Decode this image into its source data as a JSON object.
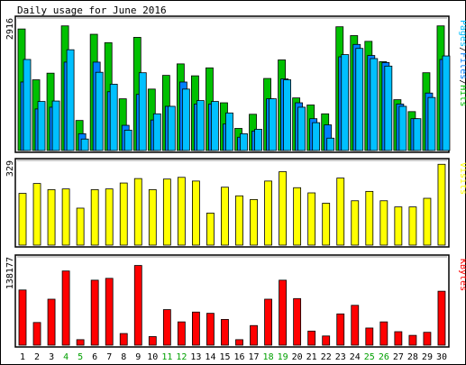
{
  "chart_data": {
    "type": "bar",
    "title": "Daily usage for June 2016",
    "categories": [
      "1",
      "2",
      "3",
      "4",
      "5",
      "6",
      "7",
      "8",
      "9",
      "10",
      "11",
      "12",
      "13",
      "14",
      "15",
      "16",
      "17",
      "18",
      "19",
      "20",
      "21",
      "22",
      "23",
      "24",
      "25",
      "26",
      "27",
      "28",
      "29",
      "30"
    ],
    "weekend_days": [
      "4",
      "5",
      "11",
      "12",
      "18",
      "19",
      "25",
      "26"
    ],
    "colors": {
      "hits": "#00c000",
      "files": "#0080ff",
      "pages": "#00c0ff",
      "visits": "#ffff00",
      "kbytes": "#ff0000",
      "weekday_label": "#000000",
      "weekend_label": "#00a000",
      "panel_bg": "#ffffff",
      "frame": "#000000"
    },
    "panels": [
      {
        "id": "hits-files-pages",
        "max_label": "2916",
        "ymax": 2916,
        "legend": [
          {
            "text": "Pages",
            "color": "#00c0ff"
          },
          {
            "text": "/",
            "color": "#000000"
          },
          {
            "text": "Files",
            "color": "#0080ff"
          },
          {
            "text": "/",
            "color": "#000000"
          },
          {
            "text": "Hits",
            "color": "#00c000"
          }
        ],
        "series": [
          {
            "name": "Hits",
            "color": "#00c000",
            "values": [
              2750,
              1600,
              1750,
              2820,
              680,
              2630,
              2440,
              1170,
              2560,
              1390,
              1700,
              1960,
              1690,
              1870,
              1080,
              500,
              820,
              1630,
              2050,
              1190,
              1030,
              830,
              2800,
              2600,
              2470,
              2010,
              1150,
              880,
              1760,
              2820
            ]
          },
          {
            "name": "Files",
            "color": "#0080ff",
            "values": [
              1550,
              940,
              980,
              2000,
              380,
              2000,
              1330,
              570,
              1270,
              690,
              1000,
              1550,
              1050,
              1050,
              600,
              300,
              440,
              1170,
              1620,
              1080,
              720,
              580,
              2120,
              2400,
              2150,
              1990,
              1050,
              720,
              1300,
              2060
            ]
          },
          {
            "name": "Pages",
            "color": "#00c0ff",
            "values": [
              2060,
              1110,
              1120,
              2280,
              260,
              1770,
              1500,
              460,
              1760,
              830,
              1000,
              1390,
              1130,
              1110,
              850,
              380,
              480,
              1170,
              1600,
              980,
              630,
              280,
              2170,
              2310,
              2080,
              1910,
              1000,
              720,
              1200,
              2140
            ]
          }
        ]
      },
      {
        "id": "visits",
        "max_label": "329",
        "ymax": 329,
        "legend": [
          {
            "text": "Visits",
            "color": "#ffff00"
          }
        ],
        "series": [
          {
            "name": "Visits",
            "color": "#ffff00",
            "values": [
              210,
              250,
              225,
              228,
              150,
              225,
              228,
              252,
              270,
              225,
              268,
              275,
              260,
              130,
              235,
              200,
              185,
              260,
              298,
              233,
              212,
              170,
              272,
              180,
              218,
              180,
              155,
              155,
              190,
              328
            ]
          }
        ]
      },
      {
        "id": "kbytes",
        "max_label": "138177",
        "ymax": 138177,
        "legend": [
          {
            "text": "KBytes",
            "color": "#ff0000"
          }
        ],
        "series": [
          {
            "name": "KBytes",
            "color": "#ff0000",
            "values": [
              90000,
              37000,
              75000,
              121000,
              9000,
              106000,
              109000,
              19000,
              130000,
              14000,
              58000,
              38000,
              54000,
              52000,
              42000,
              9000,
              32000,
              75000,
              106000,
              76000,
              23000,
              15000,
              51000,
              65000,
              28000,
              38000,
              22000,
              16000,
              21000,
              88000
            ]
          }
        ]
      }
    ]
  }
}
